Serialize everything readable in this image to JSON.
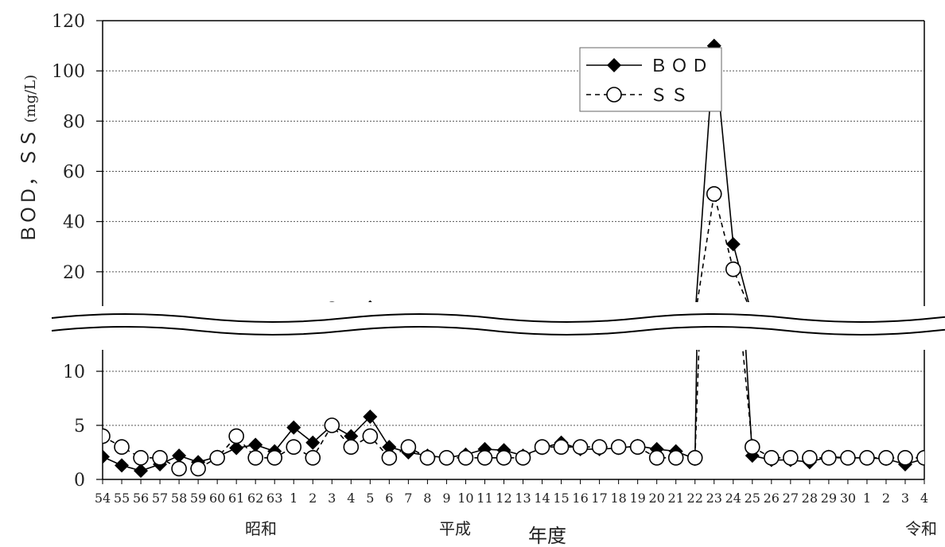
{
  "chart_data": {
    "type": "line",
    "title": "",
    "xlabel": "年度",
    "ylabel": "ＢＯＤ，ＳＳ",
    "ylabel_unit": "(mg/L)",
    "x": [
      "54",
      "55",
      "56",
      "57",
      "58",
      "59",
      "60",
      "61",
      "62",
      "63",
      "1",
      "2",
      "3",
      "4",
      "5",
      "6",
      "7",
      "8",
      "9",
      "10",
      "11",
      "12",
      "13",
      "14",
      "15",
      "16",
      "17",
      "18",
      "19",
      "20",
      "21",
      "22",
      "23",
      "24",
      "25",
      "26",
      "27",
      "28",
      "29",
      "30",
      "1",
      "2",
      "3",
      "4"
    ],
    "eras": [
      {
        "label": "昭和",
        "start_index": 0,
        "end_index": 9
      },
      {
        "label": "平成",
        "start_index": 10,
        "end_index": 40
      },
      {
        "label": "令和",
        "start_index": 40,
        "end_index": 43
      }
    ],
    "y_lower_ticks": [
      0,
      5,
      10
    ],
    "y_upper_ticks": [
      20,
      40,
      60,
      80,
      100,
      120
    ],
    "y_break": [
      12,
      10
    ],
    "ylim": [
      0,
      120
    ],
    "grid": true,
    "legend_position": "top-right",
    "series": [
      {
        "name": "ＢＯＤ",
        "marker": "diamond",
        "line": "solid",
        "values": [
          2.1,
          1.3,
          0.8,
          1.4,
          2.2,
          1.6,
          2.1,
          2.9,
          3.2,
          2.6,
          4.8,
          3.4,
          5.0,
          4.0,
          5.8,
          3.0,
          2.5,
          2.2,
          2.0,
          2.3,
          2.8,
          2.7,
          2.2,
          2.9,
          3.4,
          2.8,
          2.8,
          2.9,
          3.1,
          2.8,
          2.6,
          1.9,
          110,
          31,
          2.2,
          1.8,
          1.8,
          1.6,
          2.1,
          2.0,
          2.0,
          1.9,
          1.4,
          1.9
        ]
      },
      {
        "name": "ＳＳ",
        "marker": "open-circle",
        "line": "dashed",
        "values": [
          4.0,
          3.0,
          2.0,
          2.0,
          1.0,
          1.0,
          2.0,
          4.0,
          2.0,
          2.0,
          3.0,
          2.0,
          5.0,
          3.0,
          4.0,
          2.0,
          3.0,
          2.0,
          2.0,
          2.0,
          2.0,
          2.0,
          2.0,
          3.0,
          3.0,
          3.0,
          3.0,
          3.0,
          3.0,
          2.0,
          2.0,
          2.0,
          51,
          21,
          3.0,
          2.0,
          2.0,
          2.0,
          2.0,
          2.0,
          2.0,
          2.0,
          2.0,
          2.0
        ]
      }
    ]
  }
}
